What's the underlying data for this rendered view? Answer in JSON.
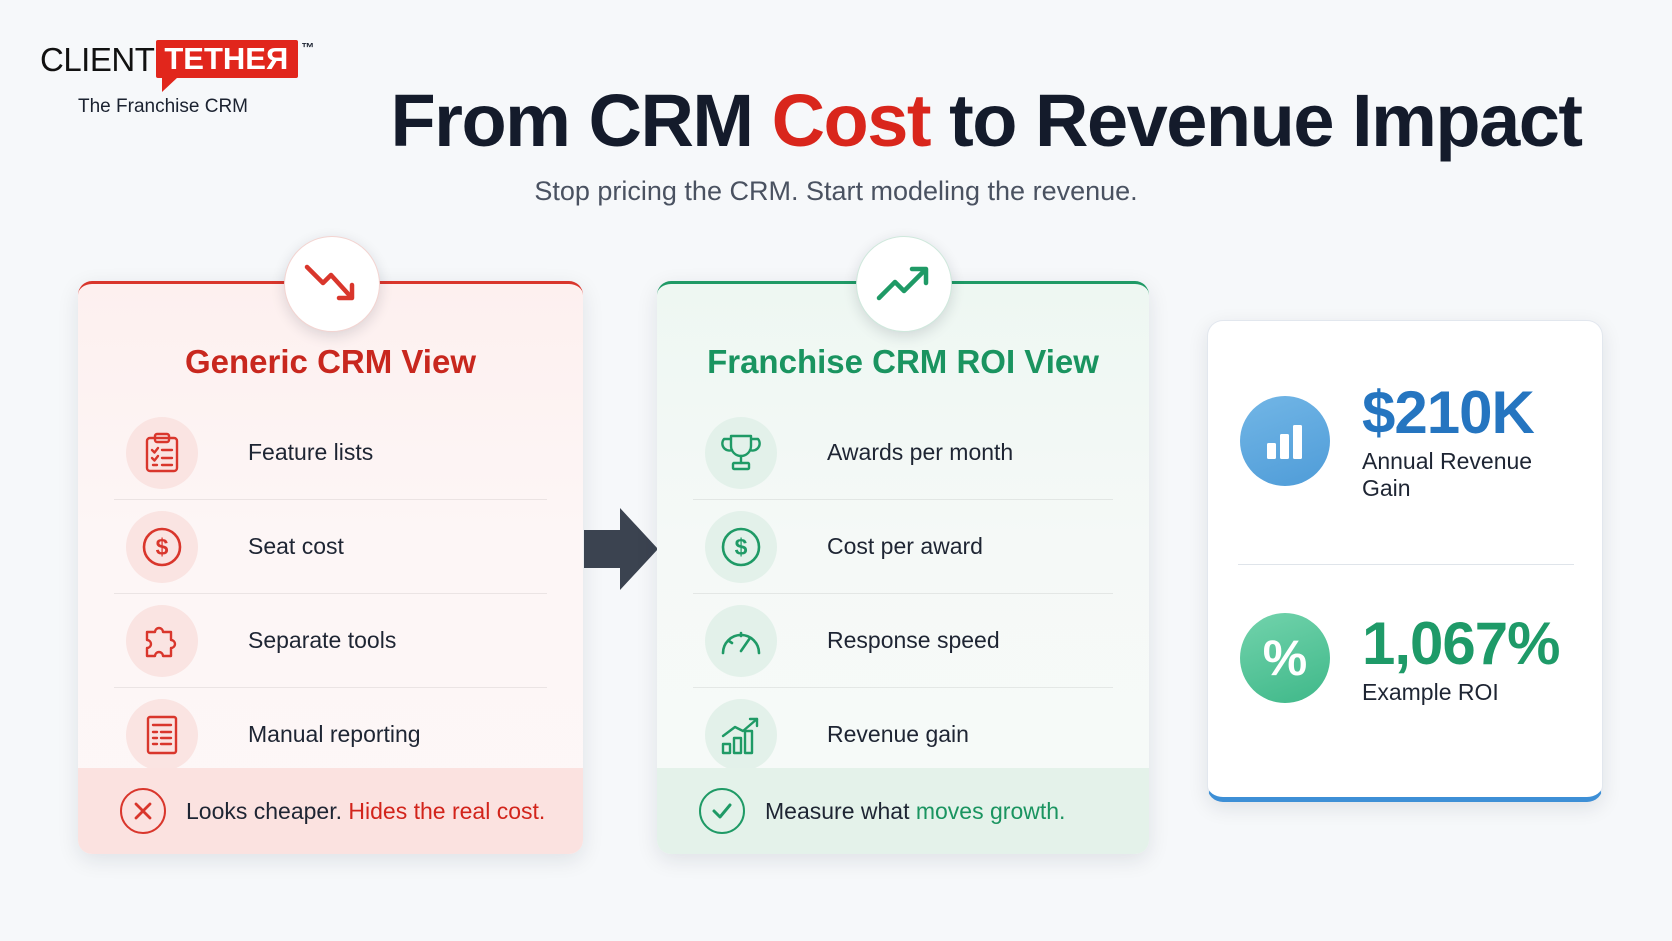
{
  "logo": {
    "word_left": "CLIENT",
    "word_right": "TETHEЯ",
    "trademark": "™",
    "tagline": "The Franchise CRM"
  },
  "header": {
    "title_part1": "From CRM ",
    "title_accent": "Cost",
    "title_part2": " to Revenue Impact",
    "subtitle": "Stop pricing the CRM. Start modeling the revenue."
  },
  "generic_view": {
    "title": "Generic CRM View",
    "badge_icon": "trending-down-icon",
    "accent_color": "#d9362c",
    "items": [
      {
        "label": "Feature lists",
        "icon": "clipboard-checklist-icon"
      },
      {
        "label": "Seat cost",
        "icon": "dollar-circle-icon"
      },
      {
        "label": "Separate tools",
        "icon": "puzzle-piece-icon"
      },
      {
        "label": "Manual reporting",
        "icon": "report-document-icon"
      }
    ],
    "footer": {
      "icon": "x-circle-icon",
      "text": "Looks cheaper. ",
      "highlight": "Hides the real cost."
    }
  },
  "roi_view": {
    "title": "Franchise CRM ROI View",
    "badge_icon": "trending-up-icon",
    "accent_color": "#1f9a66",
    "items": [
      {
        "label": "Awards per month",
        "icon": "trophy-icon"
      },
      {
        "label": "Cost per award",
        "icon": "dollar-circle-icon"
      },
      {
        "label": "Response speed",
        "icon": "speedometer-icon"
      },
      {
        "label": "Revenue gain",
        "icon": "bar-chart-growth-icon"
      }
    ],
    "footer": {
      "icon": "check-circle-icon",
      "text": "Measure what ",
      "highlight": "moves growth."
    }
  },
  "roi_stats": {
    "revenue": {
      "value": "$210K",
      "label": "Annual Revenue Gain",
      "icon": "bar-chart-icon",
      "color": "#2575c0"
    },
    "roi": {
      "value": "1,067%",
      "label": "Example ROI",
      "icon_glyph": "%",
      "color": "#1e9a68"
    }
  }
}
